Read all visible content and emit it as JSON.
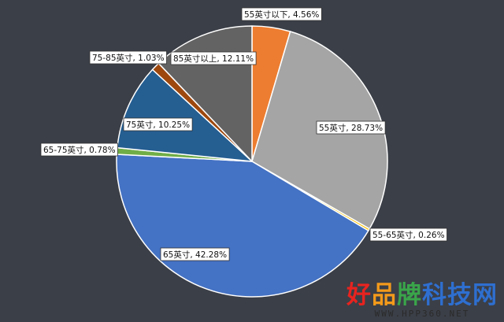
{
  "chart_data": {
    "type": "pie",
    "start_angle_deg": 0,
    "direction": "clockwise",
    "slices": [
      {
        "label": "55英寸以下, 4.56%",
        "value": 4.56,
        "color": "#ed7d31"
      },
      {
        "label": "55英寸, 28.73%",
        "value": 28.73,
        "color": "#a5a5a5"
      },
      {
        "label": "55-65英寸, 0.26%",
        "value": 0.26,
        "color": "#ffc000"
      },
      {
        "label": "65英寸, 42.28%",
        "value": 42.28,
        "color": "#4472c4"
      },
      {
        "label": "65-75英寸, 0.78%",
        "value": 0.78,
        "color": "#70ad47"
      },
      {
        "label": "75英寸, 10.25%",
        "value": 10.25,
        "color": "#255e91"
      },
      {
        "label": "75-85英寸, 1.03%",
        "value": 1.03,
        "color": "#9e480e"
      },
      {
        "label": "85英寸以上, 12.11%",
        "value": 12.11,
        "color": "#636363"
      }
    ]
  },
  "watermark": {
    "text_chars": [
      "好",
      "品",
      "牌",
      "科",
      "技",
      "网"
    ],
    "colors": [
      "#e8231f",
      "#f39a1b",
      "#3aa54a",
      "#2e6fd0",
      "#2e6fd0",
      "#2e6fd0"
    ],
    "subtext": "WWW.HPP360.NET"
  }
}
